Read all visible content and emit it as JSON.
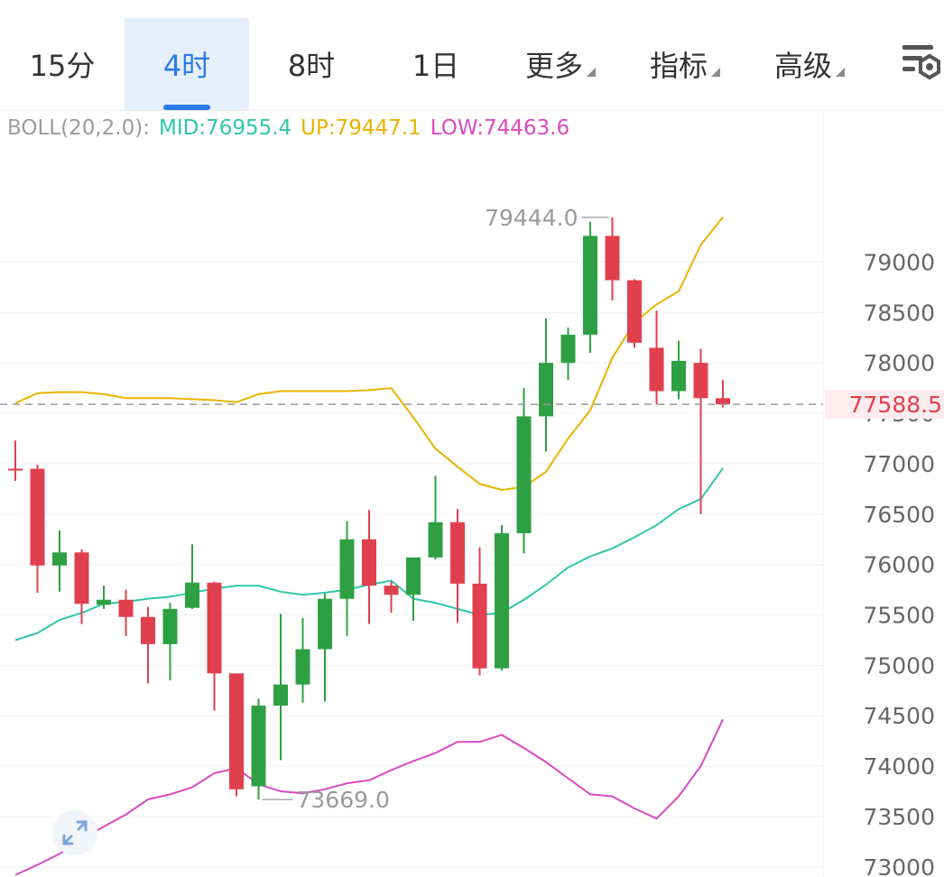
{
  "tabs": [
    {
      "label": "15分",
      "active": false,
      "has_caret": false
    },
    {
      "label": "4时",
      "active": true,
      "has_caret": false
    },
    {
      "label": "8时",
      "active": false,
      "has_caret": false
    },
    {
      "label": "1日",
      "active": false,
      "has_caret": false
    },
    {
      "label": "更多",
      "active": false,
      "has_caret": true
    },
    {
      "label": "指标",
      "active": false,
      "has_caret": true
    },
    {
      "label": "高级",
      "active": false,
      "has_caret": true
    }
  ],
  "settings_icon": "chart-settings-icon",
  "expand_icon": "expand-arrows-icon",
  "legend": {
    "label": "BOLL(20,2.0):",
    "mid": "MID:76955.4",
    "up": "UP:79447.1",
    "low": "LOW:74463.6"
  },
  "colors": {
    "up_candle": "#2ea043",
    "down_candle": "#e0404e",
    "mid": "#2fc6a7",
    "upper": "#e8b300",
    "lower": "#d94bc0",
    "active_tab": "#2b7de9"
  },
  "chart_data": {
    "type": "candlestick",
    "indicator": "BOLL(20,2.0)",
    "y_ticks": [
      79000,
      78500,
      78000,
      77500,
      77000,
      76500,
      76000,
      75500,
      75000,
      74500,
      74000,
      73500,
      73000
    ],
    "ylim": [
      72900,
      80150
    ],
    "current_price": 77588.5,
    "current_price_label": "77588.5",
    "max_label": "79444.0",
    "max_value": 79444.0,
    "min_label": "73669.0",
    "min_value": 73669.0,
    "candles": [
      {
        "o": 76950,
        "h": 77230,
        "l": 76830,
        "c": 76940
      },
      {
        "o": 76950,
        "h": 76990,
        "l": 75720,
        "c": 75990
      },
      {
        "o": 75990,
        "h": 76340,
        "l": 75730,
        "c": 76120
      },
      {
        "o": 76120,
        "h": 76150,
        "l": 75410,
        "c": 75610
      },
      {
        "o": 75600,
        "h": 75790,
        "l": 75560,
        "c": 75650
      },
      {
        "o": 75650,
        "h": 75750,
        "l": 75290,
        "c": 75480
      },
      {
        "o": 75480,
        "h": 75580,
        "l": 74820,
        "c": 75210
      },
      {
        "o": 75210,
        "h": 75620,
        "l": 74850,
        "c": 75560
      },
      {
        "o": 75570,
        "h": 76200,
        "l": 75560,
        "c": 75820
      },
      {
        "o": 75820,
        "h": 75830,
        "l": 74550,
        "c": 74920
      },
      {
        "o": 74920,
        "h": 74910,
        "l": 73700,
        "c": 73770
      },
      {
        "o": 73800,
        "h": 74670,
        "l": 73669,
        "c": 74600
      },
      {
        "o": 74600,
        "h": 75510,
        "l": 74060,
        "c": 74810
      },
      {
        "o": 74810,
        "h": 75470,
        "l": 74630,
        "c": 75160
      },
      {
        "o": 75160,
        "h": 75710,
        "l": 74640,
        "c": 75660
      },
      {
        "o": 75660,
        "h": 76430,
        "l": 75290,
        "c": 76250
      },
      {
        "o": 76250,
        "h": 76540,
        "l": 75410,
        "c": 75790
      },
      {
        "o": 75790,
        "h": 75830,
        "l": 75520,
        "c": 75700
      },
      {
        "o": 75700,
        "h": 76030,
        "l": 75440,
        "c": 76070
      },
      {
        "o": 76070,
        "h": 76880,
        "l": 76050,
        "c": 76420
      },
      {
        "o": 76420,
        "h": 76550,
        "l": 75420,
        "c": 75810
      },
      {
        "o": 75810,
        "h": 76170,
        "l": 74900,
        "c": 74970
      },
      {
        "o": 74970,
        "h": 76390,
        "l": 74950,
        "c": 76310
      },
      {
        "o": 76310,
        "h": 77750,
        "l": 76110,
        "c": 77470
      },
      {
        "o": 77470,
        "h": 78440,
        "l": 77120,
        "c": 78000
      },
      {
        "o": 78000,
        "h": 78350,
        "l": 77830,
        "c": 78280
      },
      {
        "o": 78280,
        "h": 79400,
        "l": 78100,
        "c": 79260
      },
      {
        "o": 79260,
        "h": 79444,
        "l": 78620,
        "c": 78820
      },
      {
        "o": 78820,
        "h": 78830,
        "l": 78150,
        "c": 78200
      },
      {
        "o": 78150,
        "h": 78520,
        "l": 77590,
        "c": 77720
      },
      {
        "o": 77720,
        "h": 78220,
        "l": 77640,
        "c": 78020
      },
      {
        "o": 78000,
        "h": 78140,
        "l": 76500,
        "c": 77650
      },
      {
        "o": 77650,
        "h": 77830,
        "l": 77560,
        "c": 77588.5
      }
    ],
    "mid_line": [
      75250,
      75320,
      75450,
      75520,
      75610,
      75630,
      75660,
      75680,
      75720,
      75760,
      75790,
      75790,
      75730,
      75700,
      75720,
      75750,
      75800,
      75840,
      75660,
      75620,
      75560,
      75500,
      75520,
      75650,
      75800,
      75970,
      76080,
      76160,
      76270,
      76390,
      76550,
      76650,
      76955.4
    ],
    "upper_line": [
      77600,
      77700,
      77710,
      77710,
      77690,
      77650,
      77650,
      77650,
      77640,
      77630,
      77610,
      77690,
      77720,
      77720,
      77720,
      77720,
      77730,
      77750,
      77460,
      77150,
      76970,
      76800,
      76740,
      76770,
      76920,
      77250,
      77530,
      78050,
      78400,
      78580,
      78710,
      79170,
      79447.1
    ],
    "lower_line": [
      72920,
      73020,
      73130,
      73280,
      73400,
      73520,
      73670,
      73720,
      73790,
      73930,
      73980,
      73820,
      73750,
      73730,
      73770,
      73830,
      73860,
      73960,
      74050,
      74130,
      74240,
      74240,
      74310,
      74180,
      74040,
      73880,
      73720,
      73700,
      73580,
      73480,
      73700,
      74000,
      74463.6
    ]
  }
}
